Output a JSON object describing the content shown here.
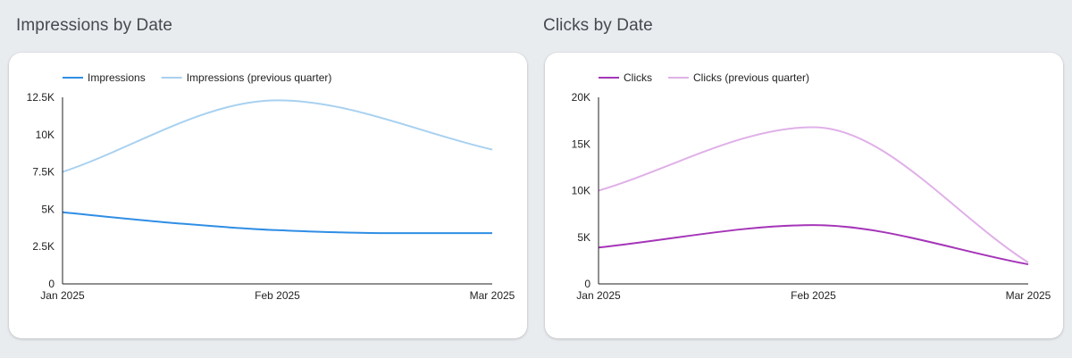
{
  "chart_data": [
    {
      "type": "line",
      "title": "Impressions by Date",
      "xlabel": "",
      "ylabel": "",
      "x_ticks": [
        "Jan 2025",
        "Feb 2025",
        "Mar 2025"
      ],
      "y_ticks": [
        "0",
        "2.5K",
        "5K",
        "7.5K",
        "10K",
        "12.5K"
      ],
      "ylim": [
        0,
        12500
      ],
      "legend_position": "top-left",
      "series": [
        {
          "name": "Impressions",
          "color": "#2f8ee5",
          "x": [
            0,
            0.25,
            0.5,
            0.75,
            1
          ],
          "values": [
            4800,
            4100,
            3600,
            3400,
            3400
          ]
        },
        {
          "name": "Impressions (previous quarter)",
          "color": "#a8d1f0",
          "x": [
            0,
            0.5,
            1
          ],
          "values": [
            7500,
            12300,
            9000
          ]
        }
      ]
    },
    {
      "type": "line",
      "title": "Clicks by Date",
      "xlabel": "",
      "ylabel": "",
      "x_ticks": [
        "Jan 2025",
        "Feb 2025",
        "Mar 2025"
      ],
      "y_ticks": [
        "0",
        "5K",
        "10K",
        "15K",
        "20K"
      ],
      "ylim": [
        0,
        20000
      ],
      "legend_position": "top-left",
      "series": [
        {
          "name": "Clicks",
          "color": "#a535b8",
          "x": [
            0,
            0.5,
            1
          ],
          "values": [
            3900,
            6300,
            2100
          ]
        },
        {
          "name": "Clicks (previous quarter)",
          "color": "#e0b0e8",
          "x": [
            0,
            0.5,
            1
          ],
          "values": [
            10000,
            16800,
            2300
          ]
        }
      ]
    }
  ]
}
